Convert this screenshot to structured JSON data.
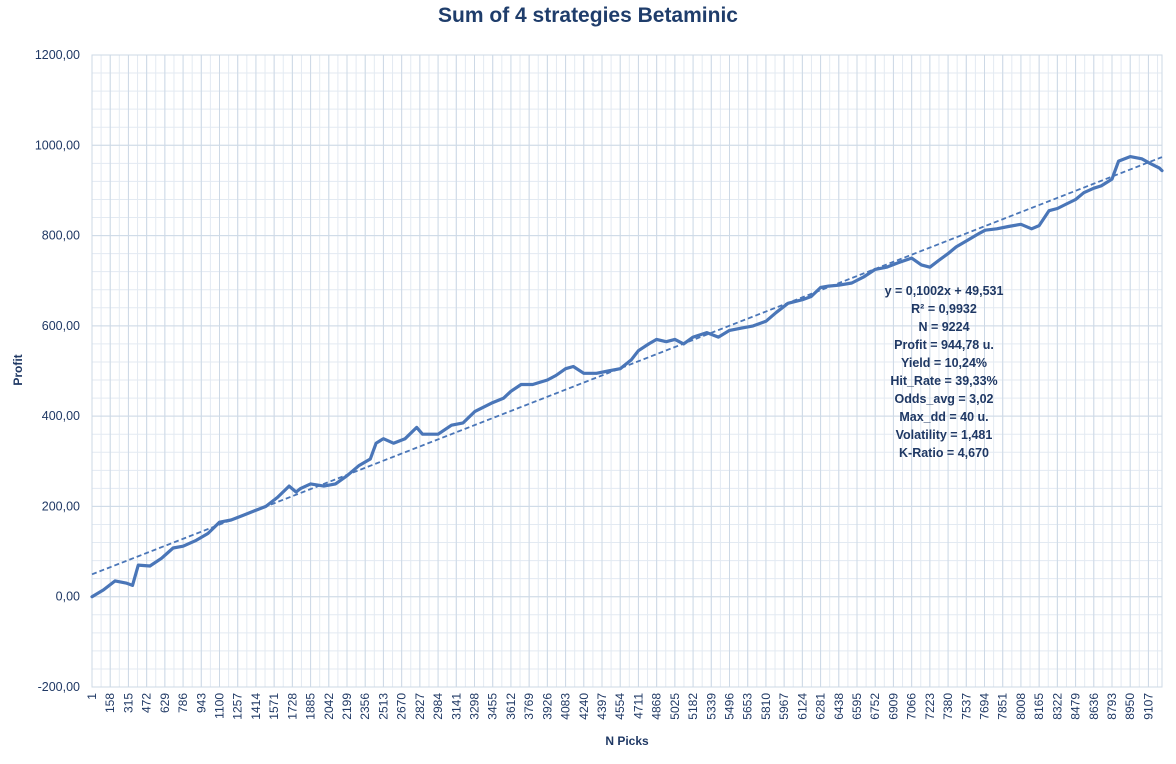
{
  "chart_data": {
    "type": "line",
    "title": "Sum of 4 strategies Betaminic",
    "xlabel": "N Picks",
    "ylabel": "Profit",
    "ylim": [
      -200,
      1200
    ],
    "xlim": [
      1,
      9224
    ],
    "grid": true,
    "y_ticks": [
      "-200,00",
      "0,00",
      "200,00",
      "400,00",
      "600,00",
      "800,00",
      "1000,00",
      "1200,00"
    ],
    "x_ticks": [
      "1",
      "158",
      "315",
      "472",
      "629",
      "786",
      "943",
      "1100",
      "1257",
      "1414",
      "1571",
      "1728",
      "1885",
      "2042",
      "2199",
      "2356",
      "2513",
      "2670",
      "2827",
      "2984",
      "3141",
      "3298",
      "3455",
      "3612",
      "3769",
      "3926",
      "4083",
      "4240",
      "4397",
      "4554",
      "4711",
      "4868",
      "5025",
      "5182",
      "5339",
      "5496",
      "5653",
      "5810",
      "5967",
      "6124",
      "6281",
      "6438",
      "6595",
      "6752",
      "6909",
      "7066",
      "7223",
      "7380",
      "7537",
      "7694",
      "7851",
      "8008",
      "8165",
      "8322",
      "8479",
      "8636",
      "8793",
      "8950",
      "9107"
    ],
    "series": [
      {
        "style": "solid",
        "color": "#4a76b8",
        "x": [
          1,
          100,
          200,
          300,
          350,
          400,
          500,
          600,
          700,
          786,
          900,
          1000,
          1100,
          1200,
          1300,
          1400,
          1500,
          1600,
          1700,
          1760,
          1800,
          1885,
          2000,
          2100,
          2200,
          2300,
          2400,
          2450,
          2513,
          2600,
          2700,
          2800,
          2850,
          2984,
          3100,
          3200,
          3300,
          3455,
          3550,
          3612,
          3700,
          3800,
          3926,
          4000,
          4083,
          4150,
          4240,
          4350,
          4450,
          4554,
          4650,
          4711,
          4800,
          4868,
          4950,
          5025,
          5100,
          5182,
          5300,
          5400,
          5496,
          5600,
          5700,
          5810,
          5900,
          6000,
          6124,
          6200,
          6281,
          6350,
          6438,
          6550,
          6650,
          6752,
          6850,
          6950,
          7066,
          7150,
          7223,
          7300,
          7380,
          7450,
          7550,
          7650,
          7700,
          7800,
          7900,
          8008,
          8100,
          8165,
          8250,
          8322,
          8400,
          8479,
          8550,
          8636,
          8700,
          8793,
          8850,
          8950,
          9050,
          9120,
          9200,
          9224
        ],
        "y": [
          0,
          15,
          35,
          30,
          25,
          70,
          68,
          85,
          108,
          112,
          125,
          140,
          165,
          170,
          180,
          190,
          200,
          220,
          245,
          232,
          240,
          250,
          245,
          250,
          268,
          290,
          305,
          340,
          350,
          340,
          350,
          375,
          360,
          360,
          380,
          385,
          410,
          430,
          440,
          455,
          470,
          470,
          480,
          490,
          505,
          510,
          495,
          495,
          500,
          505,
          525,
          545,
          560,
          570,
          565,
          570,
          560,
          575,
          585,
          575,
          590,
          595,
          600,
          610,
          630,
          650,
          658,
          665,
          685,
          688,
          690,
          695,
          708,
          725,
          730,
          740,
          750,
          735,
          730,
          745,
          760,
          775,
          790,
          805,
          812,
          815,
          820,
          825,
          815,
          822,
          855,
          860,
          870,
          880,
          895,
          905,
          910,
          925,
          965,
          975,
          970,
          960,
          950,
          944
        ]
      },
      {
        "style": "dashed",
        "color": "#4a76b8",
        "equation": "y = 0,1002x + 49,531",
        "x": [
          1,
          9224
        ],
        "y": [
          49.63,
          973.77
        ]
      }
    ],
    "annotations": [
      "y = 0,1002x + 49,531",
      "R² = 0,9932",
      "N = 9224",
      "Profit = 944,78 u.",
      "Yield = 10,24%",
      "Hit_Rate = 39,33%",
      "Odds_avg = 3,02",
      "Max_dd = 40 u.",
      "Volatility = 1,481",
      "K-Ratio = 4,670"
    ]
  }
}
